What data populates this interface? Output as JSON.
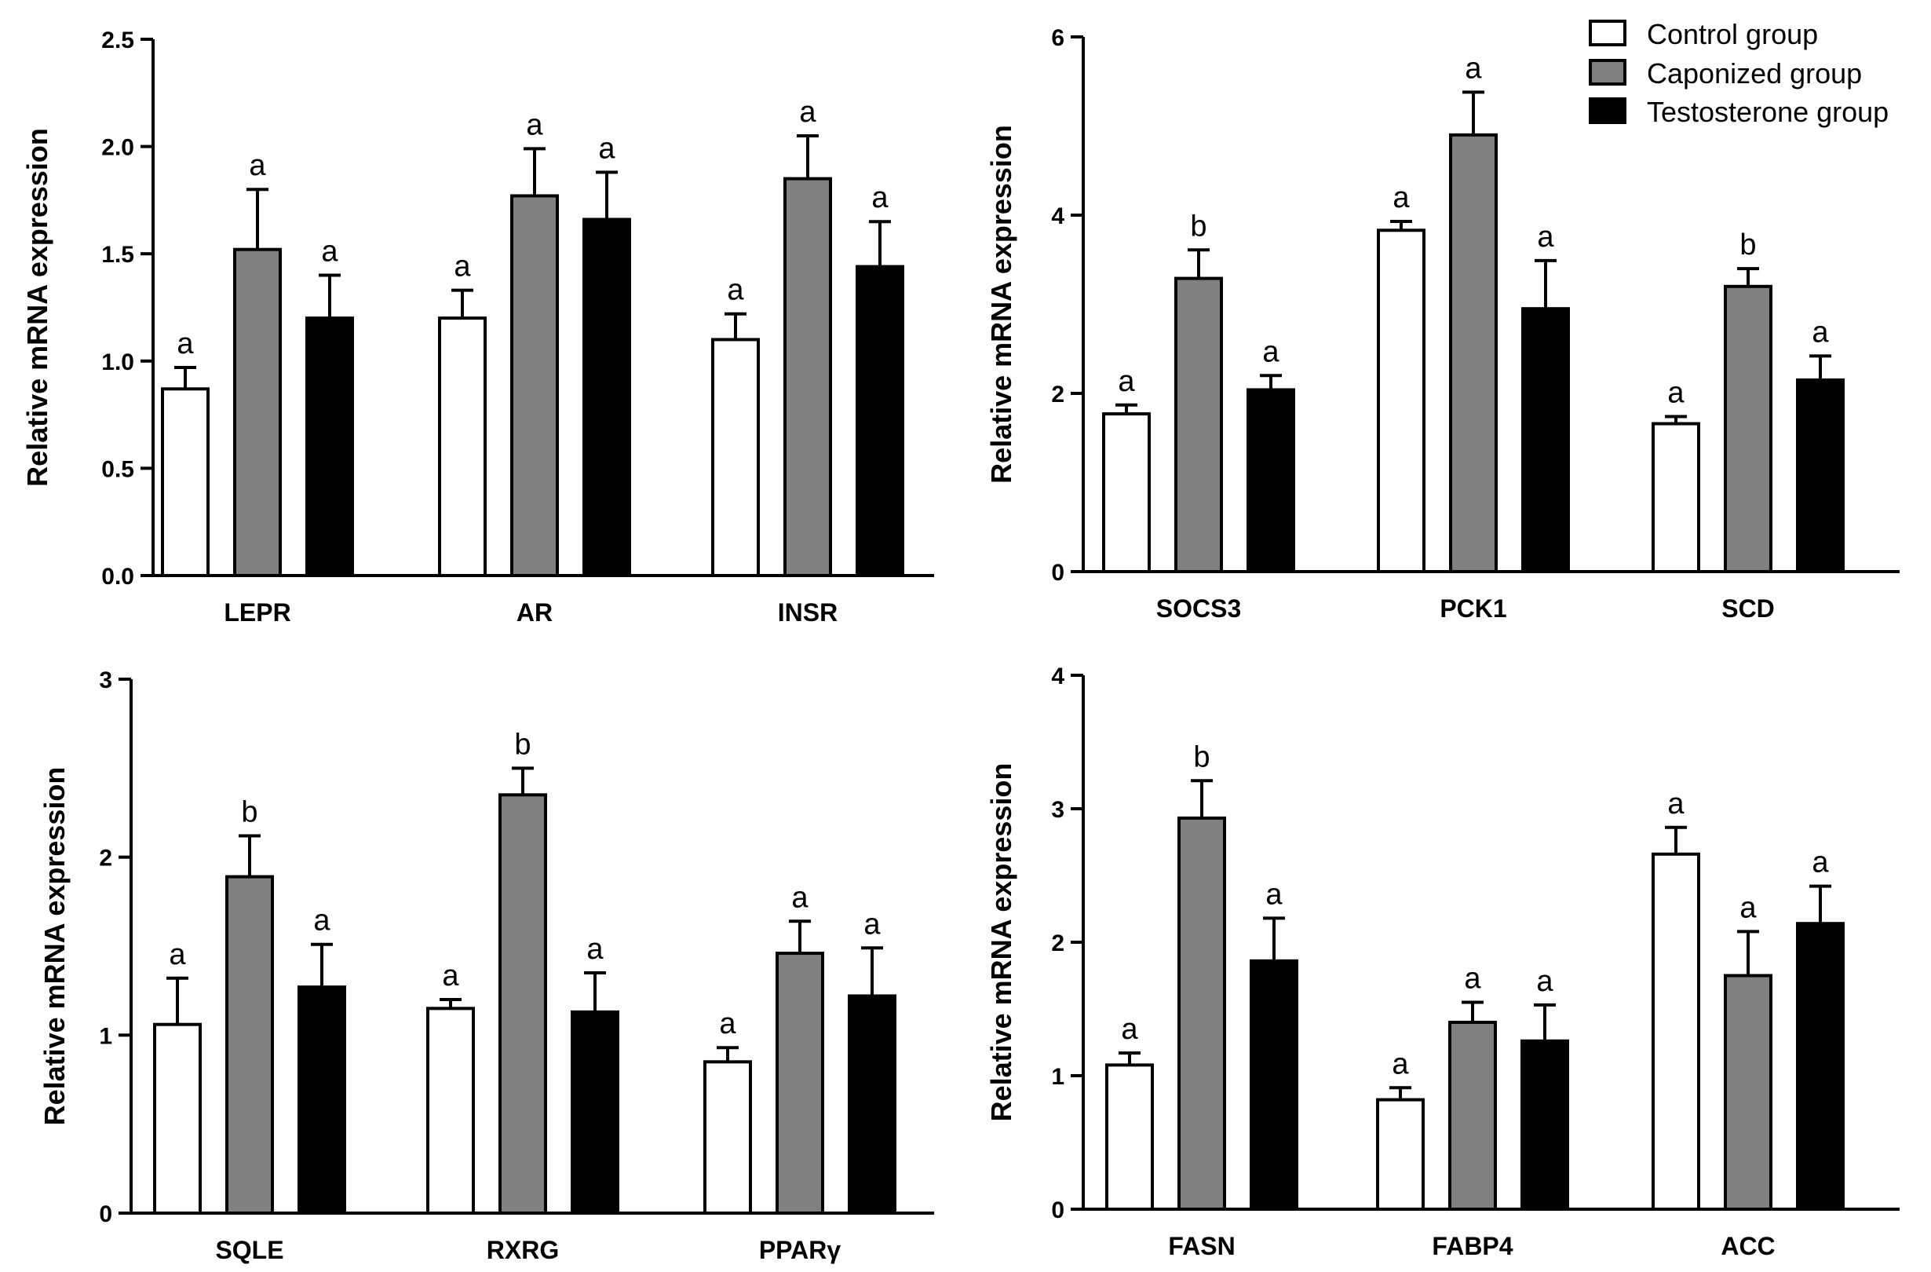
{
  "legend": [
    {
      "label": "Control group",
      "fill": "#ffffff"
    },
    {
      "label": "Caponized group",
      "fill": "#808080"
    },
    {
      "label": "Testosterone group",
      "fill": "#000000"
    }
  ],
  "chart_data": [
    {
      "type": "bar",
      "ylabel": "Relative mRNA expression",
      "ylim": [
        0,
        2.5
      ],
      "yticks": [
        0.0,
        0.5,
        1.0,
        1.5,
        2.0,
        2.5
      ],
      "ytick_labels": [
        "0.0",
        "0.5",
        "1.0",
        "1.5",
        "2.0",
        "2.5"
      ],
      "categories": [
        "LEPR",
        "AR",
        "INSR"
      ],
      "series": [
        {
          "name": "Control group",
          "values": [
            0.87,
            1.2,
            1.1
          ],
          "errors": [
            0.1,
            0.13,
            0.12
          ],
          "letters": [
            "a",
            "a",
            "a"
          ]
        },
        {
          "name": "Caponized group",
          "values": [
            1.52,
            1.77,
            1.85
          ],
          "errors": [
            0.28,
            0.22,
            0.2
          ],
          "letters": [
            "a",
            "a",
            "a"
          ]
        },
        {
          "name": "Testosterone group",
          "values": [
            1.2,
            1.66,
            1.44
          ],
          "errors": [
            0.2,
            0.22,
            0.21
          ],
          "letters": [
            "a",
            "a",
            "a"
          ]
        }
      ]
    },
    {
      "type": "bar",
      "ylabel": "Relative mRNA expression",
      "ylim": [
        0,
        6
      ],
      "yticks": [
        0,
        2,
        4,
        6
      ],
      "ytick_labels": [
        "0",
        "2",
        "4",
        "6"
      ],
      "categories": [
        "SOCS3",
        "PCK1",
        "SCD"
      ],
      "series": [
        {
          "name": "Control group",
          "values": [
            1.77,
            3.83,
            1.66
          ],
          "errors": [
            0.1,
            0.1,
            0.08
          ],
          "letters": [
            "a",
            "a",
            "a"
          ]
        },
        {
          "name": "Caponized group",
          "values": [
            3.29,
            4.9,
            3.2
          ],
          "errors": [
            0.32,
            0.48,
            0.2
          ],
          "letters": [
            "b",
            "a",
            "b"
          ]
        },
        {
          "name": "Testosterone group",
          "values": [
            2.04,
            2.95,
            2.15
          ],
          "errors": [
            0.16,
            0.54,
            0.27
          ],
          "letters": [
            "a",
            "a",
            "a"
          ]
        }
      ]
    },
    {
      "type": "bar",
      "ylabel": "Relative mRNA expression",
      "ylim": [
        0,
        3
      ],
      "yticks": [
        0,
        1,
        2,
        3
      ],
      "ytick_labels": [
        "0",
        "1",
        "2",
        "3"
      ],
      "categories": [
        "SQLE",
        "RXRG",
        "PPARγ"
      ],
      "series": [
        {
          "name": "Control group",
          "values": [
            1.06,
            1.15,
            0.85
          ],
          "errors": [
            0.26,
            0.05,
            0.08
          ],
          "letters": [
            "a",
            "a",
            "a"
          ]
        },
        {
          "name": "Caponized group",
          "values": [
            1.89,
            2.35,
            1.46
          ],
          "errors": [
            0.23,
            0.15,
            0.18
          ],
          "letters": [
            "b",
            "b",
            "a"
          ]
        },
        {
          "name": "Testosterone group",
          "values": [
            1.27,
            1.13,
            1.22
          ],
          "errors": [
            0.24,
            0.22,
            0.27
          ],
          "letters": [
            "a",
            "a",
            "a"
          ]
        }
      ]
    },
    {
      "type": "bar",
      "ylabel": "Relative mRNA expression",
      "ylim": [
        0,
        4
      ],
      "yticks": [
        0,
        1,
        2,
        3,
        4
      ],
      "ytick_labels": [
        "0",
        "1",
        "2",
        "3",
        "4"
      ],
      "categories": [
        "FASN",
        "FABP4",
        "ACC"
      ],
      "series": [
        {
          "name": "Control group",
          "values": [
            1.08,
            0.82,
            2.66
          ],
          "errors": [
            0.09,
            0.09,
            0.2
          ],
          "letters": [
            "a",
            "a",
            "a"
          ]
        },
        {
          "name": "Caponized group",
          "values": [
            2.93,
            1.4,
            1.75
          ],
          "errors": [
            0.28,
            0.15,
            0.33
          ],
          "letters": [
            "b",
            "a",
            "a"
          ]
        },
        {
          "name": "Testosterone group",
          "values": [
            1.86,
            1.26,
            2.14
          ],
          "errors": [
            0.32,
            0.27,
            0.28
          ],
          "letters": [
            "a",
            "a",
            "a"
          ]
        }
      ]
    }
  ]
}
